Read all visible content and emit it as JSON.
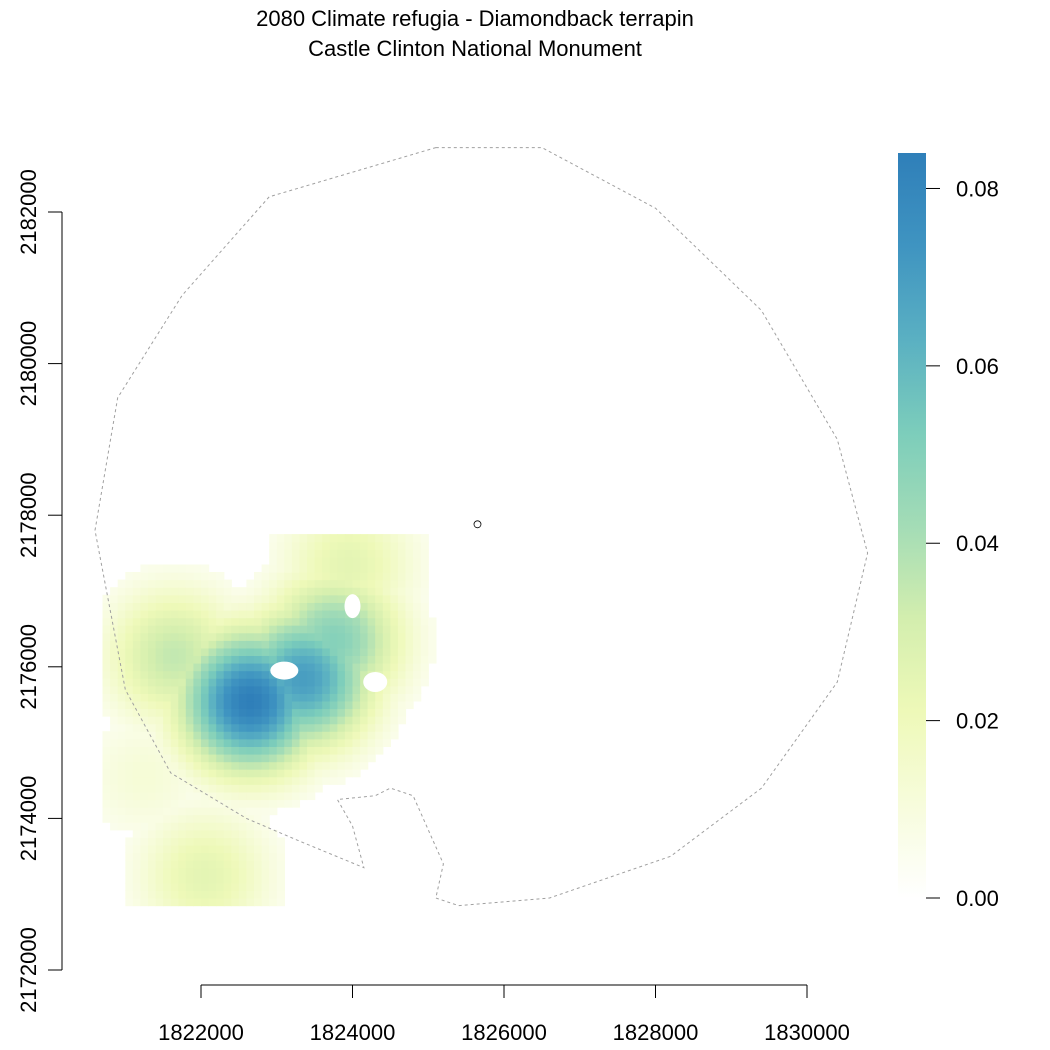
{
  "title": {
    "line1": "2080 Climate refugia - Diamondback terrapin",
    "line2": "Castle Clinton National Monument"
  },
  "colors": {
    "scale": [
      "#ffffff",
      "#f7fcdc",
      "#eef9b8",
      "#d3eeae",
      "#a3dcb6",
      "#7ccdbb",
      "#5ab0c2",
      "#3f94c1",
      "#2f7fb9"
    ],
    "boundary": "#a0a0a0",
    "axis": "#000000"
  },
  "chart_data": {
    "type": "raster-map",
    "x_axis": {
      "ticks": [
        1822000,
        1824000,
        1826000,
        1828000,
        1830000
      ],
      "tick_labels": [
        "1822000",
        "1824000",
        "1826000",
        "1828000",
        "1830000"
      ]
    },
    "y_axis": {
      "ticks": [
        2172000,
        2174000,
        2176000,
        2178000,
        2180000,
        2182000
      ],
      "tick_labels": [
        "2172000",
        "2174000",
        "2176000",
        "2178000",
        "2180000",
        "2182000"
      ]
    },
    "legend": {
      "position": "right",
      "range": [
        0,
        0.084
      ],
      "ticks": [
        0,
        0.02,
        0.04,
        0.06,
        0.08
      ],
      "tick_labels": [
        "0.00",
        "0.02",
        "0.04",
        "0.06",
        "0.08"
      ]
    },
    "monument_point": [
      1825650,
      2177880
    ],
    "boundary": [
      [
        1825100,
        2182850
      ],
      [
        1826500,
        2182850
      ],
      [
        1828000,
        2182050
      ],
      [
        1829400,
        2180700
      ],
      [
        1830400,
        2179000
      ],
      [
        1830800,
        2177500
      ],
      [
        1830400,
        2175800
      ],
      [
        1829400,
        2174400
      ],
      [
        1828200,
        2173500
      ],
      [
        1826600,
        2172950
      ],
      [
        1825400,
        2172850
      ],
      [
        1825100,
        2172950
      ],
      [
        1825200,
        2173400
      ],
      [
        1824800,
        2174300
      ],
      [
        1824500,
        2174400
      ],
      [
        1824300,
        2174300
      ],
      [
        1823800,
        2174250
      ],
      [
        1824000,
        2173900
      ],
      [
        1824150,
        2173350
      ],
      [
        1823300,
        2173700
      ],
      [
        1822600,
        2174000
      ],
      [
        1821600,
        2174600
      ],
      [
        1821000,
        2175700
      ],
      [
        1820600,
        2177800
      ],
      [
        1820900,
        2179550
      ],
      [
        1821750,
        2180900
      ],
      [
        1822900,
        2182200
      ]
    ],
    "refugia_hotspots": [
      {
        "x": 1822600,
        "y": 2175500,
        "peak": 0.084
      },
      {
        "x": 1823300,
        "y": 2175800,
        "peak": 0.07
      },
      {
        "x": 1823700,
        "y": 2176300,
        "peak": 0.05
      },
      {
        "x": 1821600,
        "y": 2176100,
        "peak": 0.035
      },
      {
        "x": 1823900,
        "y": 2177300,
        "peak": 0.025
      },
      {
        "x": 1822000,
        "y": 2173200,
        "peak": 0.025
      },
      {
        "x": 1821200,
        "y": 2174500,
        "peak": 0.012
      }
    ]
  }
}
